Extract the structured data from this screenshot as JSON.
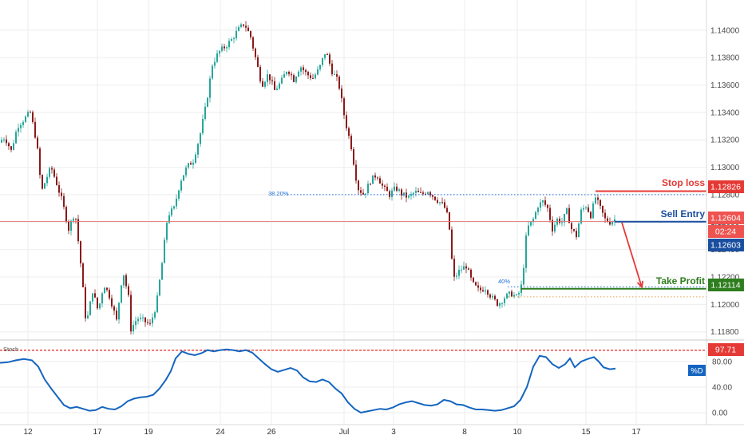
{
  "chart_data": [
    {
      "type": "candlestick",
      "title": "",
      "y_ticks": [
        "1.14000",
        "1.13800",
        "1.13600",
        "1.13400",
        "1.13200",
        "1.13000",
        "1.12800",
        "1.12600",
        "1.12400",
        "1.12200",
        "1.12000",
        "1.11800"
      ],
      "ylim": [
        1.1174,
        1.1422
      ],
      "x_ticks": [
        "12",
        "17",
        "19",
        "24",
        "26",
        "Jul",
        "3",
        "8",
        "10",
        "15",
        "17"
      ],
      "price_path": [
        [
          0,
          1.1318
        ],
        [
          8,
          1.1322
        ],
        [
          16,
          1.1312
        ],
        [
          24,
          1.133
        ],
        [
          32,
          1.1335
        ],
        [
          40,
          1.134
        ],
        [
          48,
          1.1318
        ],
        [
          54,
          1.1282
        ],
        [
          60,
          1.1292
        ],
        [
          66,
          1.13
        ],
        [
          72,
          1.129
        ],
        [
          80,
          1.1275
        ],
        [
          88,
          1.1255
        ],
        [
          96,
          1.1268
        ],
        [
          103,
          1.123
        ],
        [
          110,
          1.1185
        ],
        [
          118,
          1.121
        ],
        [
          125,
          1.1195
        ],
        [
          132,
          1.1215
        ],
        [
          140,
          1.1205
        ],
        [
          148,
          1.1188
        ],
        [
          156,
          1.1225
        ],
        [
          163,
          1.1205
        ],
        [
          166,
          1.1182
        ],
        [
          174,
          1.119
        ],
        [
          182,
          1.1188
        ],
        [
          190,
          1.1185
        ],
        [
          198,
          1.12
        ],
        [
          205,
          1.123
        ],
        [
          212,
          1.1265
        ],
        [
          220,
          1.127
        ],
        [
          228,
          1.129
        ],
        [
          236,
          1.13
        ],
        [
          244,
          1.1305
        ],
        [
          252,
          1.1322
        ],
        [
          260,
          1.1345
        ],
        [
          268,
          1.1375
        ],
        [
          276,
          1.1384
        ],
        [
          284,
          1.1388
        ],
        [
          292,
          1.1393
        ],
        [
          300,
          1.14
        ],
        [
          308,
          1.1405
        ],
        [
          316,
          1.1395
        ],
        [
          322,
          1.138
        ],
        [
          330,
          1.136
        ],
        [
          338,
          1.1368
        ],
        [
          346,
          1.1356
        ],
        [
          354,
          1.1362
        ],
        [
          362,
          1.1372
        ],
        [
          370,
          1.1364
        ],
        [
          378,
          1.1374
        ],
        [
          386,
          1.1368
        ],
        [
          394,
          1.1365
        ],
        [
          402,
          1.1372
        ],
        [
          410,
          1.1385
        ],
        [
          418,
          1.137
        ],
        [
          426,
          1.1362
        ],
        [
          434,
          1.1335
        ],
        [
          442,
          1.1315
        ],
        [
          450,
          1.1285
        ],
        [
          458,
          1.128
        ],
        [
          466,
          1.129
        ],
        [
          474,
          1.1295
        ],
        [
          482,
          1.1285
        ],
        [
          490,
          1.128
        ],
        [
          498,
          1.1285
        ],
        [
          506,
          1.128
        ],
        [
          514,
          1.1278
        ],
        [
          522,
          1.1282
        ],
        [
          530,
          1.128
        ],
        [
          538,
          1.1283
        ],
        [
          546,
          1.1278
        ],
        [
          552,
          1.1275
        ],
        [
          558,
          1.1272
        ],
        [
          564,
          1.1262
        ],
        [
          570,
          1.1218
        ],
        [
          578,
          1.1225
        ],
        [
          586,
          1.1228
        ],
        [
          594,
          1.1215
        ],
        [
          602,
          1.121
        ],
        [
          610,
          1.1212
        ],
        [
          618,
          1.1205
        ],
        [
          626,
          1.12
        ],
        [
          634,
          1.1205
        ],
        [
          642,
          1.1208
        ],
        [
          650,
          1.1205
        ],
        [
          656,
          1.1215
        ],
        [
          662,
          1.1255
        ],
        [
          670,
          1.1262
        ],
        [
          676,
          1.1272
        ],
        [
          682,
          1.1275
        ],
        [
          688,
          1.127
        ],
        [
          694,
          1.1255
        ],
        [
          700,
          1.1262
        ],
        [
          706,
          1.126
        ],
        [
          712,
          1.1268
        ],
        [
          718,
          1.1255
        ],
        [
          724,
          1.125
        ],
        [
          730,
          1.1268
        ],
        [
          736,
          1.1272
        ],
        [
          742,
          1.1265
        ],
        [
          748,
          1.1278
        ],
        [
          754,
          1.127
        ],
        [
          760,
          1.1262
        ],
        [
          766,
          1.126
        ],
        [
          771,
          1.1262
        ]
      ],
      "levels": {
        "fib_label": "38.20%",
        "fib_level": 1.128,
        "current_price_line": 1.12604,
        "fib_low_label": "40%",
        "fib_low": 1.12128,
        "orange_dotted": 1.12055,
        "stop_loss": {
          "label": "Stop loss",
          "price": 1.12826,
          "tag": "1.12826",
          "color": "#e53935"
        },
        "sell_entry": {
          "label": "Sell Entry",
          "price": 1.12603,
          "tag": "1.12603",
          "color": "#1a4fa0"
        },
        "take_profit": {
          "label": "Take Profit",
          "price": 1.12114,
          "tag": "1.12114",
          "color": "#2e7d1e"
        },
        "current_tag": "1.12604",
        "countdown": "02:24"
      }
    },
    {
      "type": "line",
      "series": [
        {
          "name": "%D",
          "values": [
            [
              0,
              78
            ],
            [
              10,
              79
            ],
            [
              20,
              82
            ],
            [
              30,
              84
            ],
            [
              40,
              82
            ],
            [
              48,
              72
            ],
            [
              56,
              52
            ],
            [
              64,
              38
            ],
            [
              72,
              25
            ],
            [
              80,
              12
            ],
            [
              88,
              7
            ],
            [
              96,
              9
            ],
            [
              104,
              6
            ],
            [
              112,
              3
            ],
            [
              120,
              4
            ],
            [
              128,
              9
            ],
            [
              136,
              6
            ],
            [
              144,
              5
            ],
            [
              152,
              10
            ],
            [
              160,
              18
            ],
            [
              168,
              22
            ],
            [
              176,
              24
            ],
            [
              184,
              25
            ],
            [
              192,
              28
            ],
            [
              200,
              38
            ],
            [
              208,
              52
            ],
            [
              214,
              65
            ],
            [
              220,
              85
            ],
            [
              228,
              96
            ],
            [
              236,
              92
            ],
            [
              244,
              90
            ],
            [
              252,
              93
            ],
            [
              260,
              98
            ],
            [
              268,
              96
            ],
            [
              276,
              98
            ],
            [
              284,
              99
            ],
            [
              292,
              98
            ],
            [
              300,
              96
            ],
            [
              308,
              98
            ],
            [
              316,
              94
            ],
            [
              324,
              85
            ],
            [
              332,
              76
            ],
            [
              340,
              68
            ],
            [
              348,
              64
            ],
            [
              356,
              67
            ],
            [
              364,
              70
            ],
            [
              372,
              66
            ],
            [
              380,
              55
            ],
            [
              388,
              49
            ],
            [
              396,
              48
            ],
            [
              404,
              52
            ],
            [
              412,
              48
            ],
            [
              420,
              38
            ],
            [
              428,
              30
            ],
            [
              436,
              16
            ],
            [
              444,
              6
            ],
            [
              452,
              0
            ],
            [
              460,
              2
            ],
            [
              468,
              4
            ],
            [
              476,
              6
            ],
            [
              484,
              5
            ],
            [
              492,
              8
            ],
            [
              500,
              13
            ],
            [
              508,
              16
            ],
            [
              516,
              18
            ],
            [
              524,
              15
            ],
            [
              532,
              12
            ],
            [
              540,
              11
            ],
            [
              548,
              13
            ],
            [
              556,
              20
            ],
            [
              564,
              18
            ],
            [
              572,
              13
            ],
            [
              580,
              12
            ],
            [
              588,
              8
            ],
            [
              596,
              5
            ],
            [
              604,
              5
            ],
            [
              612,
              4
            ],
            [
              620,
              3
            ],
            [
              628,
              4
            ],
            [
              636,
              7
            ],
            [
              644,
              10
            ],
            [
              652,
              20
            ],
            [
              660,
              40
            ],
            [
              668,
              72
            ],
            [
              676,
              89
            ],
            [
              684,
              87
            ],
            [
              692,
              76
            ],
            [
              700,
              70
            ],
            [
              708,
              76
            ],
            [
              714,
              85
            ],
            [
              720,
              71
            ],
            [
              728,
              80
            ],
            [
              736,
              84
            ],
            [
              744,
              87
            ],
            [
              750,
              80
            ],
            [
              756,
              71
            ],
            [
              764,
              68
            ],
            [
              771,
              69
            ]
          ]
        }
      ],
      "x_label": "",
      "y_label": "",
      "y_ticks": [
        "80.00",
        "40.00",
        "0.00"
      ],
      "ylim": [
        -8,
        112
      ],
      "overbought_tag": "97.71",
      "overbought_level": 97.71,
      "panel_label": "Stoch",
      "series_tag": "%D"
    }
  ],
  "colors": {
    "bull": "#26a69a",
    "bear": "#8b1a1a",
    "stoch_line": "#1565c0",
    "grid": "#eeeeee",
    "fib": "#1e6fd9",
    "current": "#e57373",
    "orange": "#e6a04c",
    "arrow": "#e53935"
  }
}
